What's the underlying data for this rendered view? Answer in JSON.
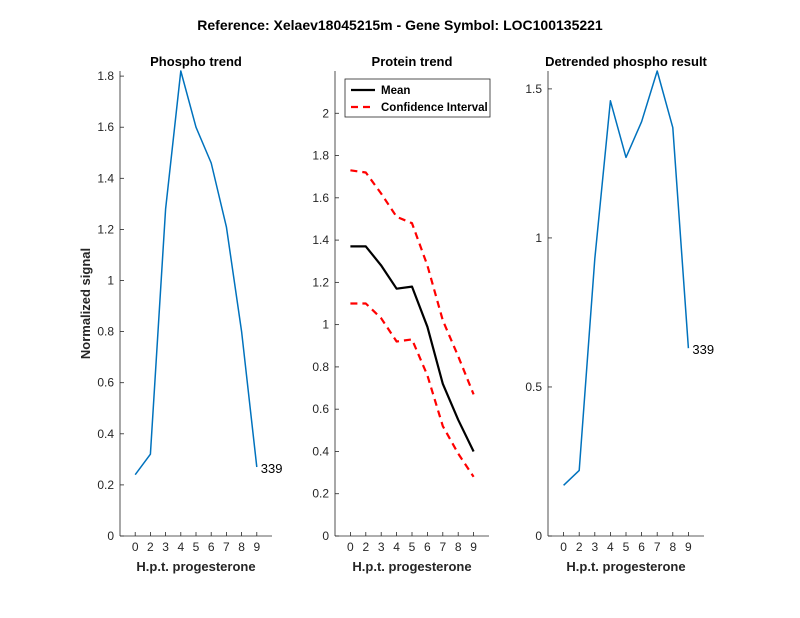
{
  "suptitle": "Reference:  Xelaev18045215m - Gene Symbol:  LOC100135221",
  "colors": {
    "phospho": "#0072BD",
    "mean": "#000000",
    "ci": "#FF0000",
    "axis": "#262626"
  },
  "chart_data": [
    {
      "type": "line",
      "title": "Phospho trend",
      "xlabel": "H.p.t. progesterone",
      "ylabel": "Normalized signal",
      "categories": [
        "0",
        "2",
        "3",
        "4",
        "5",
        "6",
        "7",
        "8",
        "9"
      ],
      "ylim": [
        0,
        1.82
      ],
      "yticks": [
        0,
        0.2,
        0.4,
        0.6,
        0.8,
        1,
        1.2,
        1.4,
        1.6,
        1.8
      ],
      "ytick_labels": [
        "0",
        "0.2",
        "0.4",
        "0.6",
        "0.8",
        "1",
        "1.2",
        "1.4",
        "1.6",
        "1.8"
      ],
      "series": [
        {
          "values": [
            0.24,
            0.32,
            1.28,
            1.82,
            1.6,
            1.46,
            1.21,
            0.8,
            0.27
          ]
        }
      ],
      "annotation": "339"
    },
    {
      "type": "line",
      "title": "Protein trend",
      "xlabel": "H.p.t. progesterone",
      "categories": [
        "0",
        "2",
        "3",
        "4",
        "5",
        "6",
        "7",
        "8",
        "9"
      ],
      "ylim": [
        0,
        2.2
      ],
      "yticks": [
        0,
        0.2,
        0.4,
        0.6,
        0.8,
        1,
        1.2,
        1.4,
        1.6,
        1.8,
        2
      ],
      "ytick_labels": [
        "0",
        "0.2",
        "0.4",
        "0.6",
        "0.8",
        "1",
        "1.2",
        "1.4",
        "1.6",
        "1.8",
        "2"
      ],
      "legend_position": "top-left",
      "series": [
        {
          "name": "Mean",
          "style": "solid",
          "values": [
            1.37,
            1.37,
            1.28,
            1.17,
            1.18,
            0.99,
            0.72,
            0.55,
            0.4
          ]
        },
        {
          "name": "Confidence Interval",
          "style": "dashed",
          "values": [
            1.73,
            1.72,
            1.62,
            1.51,
            1.48,
            1.28,
            1.02,
            0.85,
            0.67
          ]
        },
        {
          "style": "dashed",
          "values": [
            1.1,
            1.1,
            1.03,
            0.92,
            0.93,
            0.76,
            0.52,
            0.39,
            0.28
          ]
        }
      ]
    },
    {
      "type": "line",
      "title": "Detrended phospho result",
      "xlabel": "H.p.t. progesterone",
      "categories": [
        "0",
        "2",
        "3",
        "4",
        "5",
        "6",
        "7",
        "8",
        "9"
      ],
      "ylim": [
        0,
        1.56
      ],
      "yticks": [
        0,
        0.5,
        1,
        1.5
      ],
      "ytick_labels": [
        "0",
        "0.5",
        "1",
        "1.5"
      ],
      "series": [
        {
          "values": [
            0.17,
            0.22,
            0.93,
            1.46,
            1.27,
            1.39,
            1.56,
            1.37,
            0.63
          ]
        }
      ],
      "annotation": "339"
    }
  ]
}
